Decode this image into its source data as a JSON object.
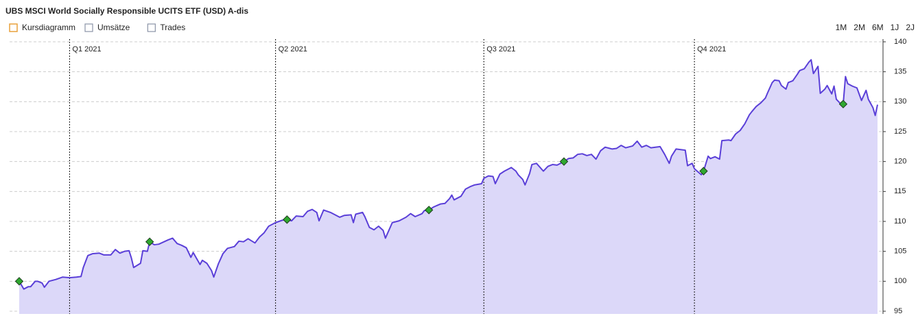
{
  "chart_data": {
    "type": "area",
    "title": "UBS MSCI World Socially Responsible UCITS ETF (USD) A-dis",
    "series": [
      {
        "name": "Kursdiagramm",
        "color": "#5a3fd8",
        "fill": "#dcd8f9",
        "x": [
          0,
          2,
          4,
          5,
          7,
          8,
          10,
          11,
          13,
          16,
          19,
          22,
          25,
          27,
          28,
          30,
          32,
          35,
          37,
          40,
          42,
          44,
          46,
          48,
          49,
          50,
          53,
          54,
          56,
          57,
          59,
          61,
          65,
          67,
          69,
          71,
          73,
          75,
          76,
          79,
          80,
          82,
          84,
          85,
          87,
          89,
          91,
          94,
          96,
          98,
          100,
          103,
          105,
          107,
          109,
          112,
          115,
          117,
          119,
          121,
          124,
          126,
          128,
          130,
          131,
          133,
          136,
          138,
          140,
          142,
          145,
          146,
          147,
          150,
          151,
          153,
          155,
          157,
          159,
          160,
          163,
          166,
          169,
          171,
          173,
          176,
          177,
          179,
          181,
          184,
          186,
          188,
          189,
          190,
          193,
          195,
          197,
          199,
          202,
          203,
          205,
          207,
          208,
          210,
          212,
          215,
          217,
          218,
          220,
          221,
          223,
          224,
          226,
          229,
          231,
          233,
          235,
          238,
          240,
          242,
          244,
          246,
          248,
          250,
          252,
          254,
          256,
          259,
          261,
          263,
          265,
          268,
          270,
          272,
          274,
          276,
          278,
          280,
          282,
          284,
          285,
          287,
          289,
          291,
          292,
          294,
          295,
          298,
          299,
          301,
          302,
          304,
          306,
          307,
          310,
          311,
          313,
          315,
          317,
          319,
          320,
          322,
          324,
          326,
          327,
          329,
          330,
          332,
          333,
          335,
          336,
          338,
          340,
          341,
          343,
          345,
          346,
          347,
          349,
          350,
          352,
          353,
          355,
          356,
          357,
          359,
          360,
          361,
          362,
          364,
          366,
          368,
          370,
          371,
          373,
          374,
          375
        ],
        "values": [
          100.0,
          98.7,
          99.1,
          99.1,
          100.0,
          100.0,
          99.7,
          99.0,
          100.0,
          100.3,
          100.7,
          100.6,
          100.7,
          100.8,
          102.3,
          104.3,
          104.6,
          104.7,
          104.4,
          104.4,
          105.3,
          104.7,
          105.0,
          105.1,
          103.9,
          102.3,
          103.0,
          105.1,
          105.0,
          106.6,
          106.1,
          106.2,
          106.9,
          107.2,
          106.3,
          106.0,
          105.6,
          104.0,
          104.8,
          102.8,
          103.5,
          103.0,
          101.8,
          100.7,
          102.9,
          104.6,
          105.5,
          105.8,
          106.7,
          106.6,
          107.1,
          106.4,
          107.4,
          108.1,
          109.2,
          109.8,
          110.2,
          110.3,
          110.1,
          110.9,
          110.8,
          111.7,
          112.0,
          111.5,
          110.1,
          111.9,
          111.5,
          111.1,
          110.7,
          111.0,
          111.1,
          109.8,
          111.2,
          111.5,
          110.8,
          109.0,
          108.6,
          109.2,
          108.5,
          107.2,
          109.8,
          110.1,
          110.7,
          111.3,
          110.8,
          111.3,
          111.8,
          111.9,
          112.4,
          112.9,
          113.0,
          113.8,
          114.4,
          113.6,
          114.2,
          115.4,
          115.8,
          116.1,
          116.3,
          117.2,
          117.6,
          117.5,
          116.3,
          117.9,
          118.4,
          119.0,
          118.4,
          117.8,
          117.0,
          116.1,
          118.0,
          119.5,
          119.7,
          118.4,
          119.2,
          119.5,
          119.4,
          120.0,
          120.5,
          120.6,
          121.2,
          121.3,
          121.0,
          121.2,
          120.4,
          121.8,
          122.4,
          122.1,
          122.2,
          122.7,
          122.3,
          122.6,
          123.4,
          122.4,
          122.7,
          122.3,
          122.4,
          122.5,
          121.2,
          119.7,
          120.9,
          122.1,
          122.0,
          121.9,
          119.3,
          119.7,
          118.8,
          117.8,
          118.4,
          120.9,
          120.5,
          120.8,
          120.4,
          123.5,
          123.6,
          123.5,
          124.6,
          125.2,
          126.3,
          127.8,
          128.3,
          129.2,
          129.8,
          130.6,
          131.5,
          133.2,
          133.6,
          133.5,
          132.7,
          132.1,
          133.2,
          133.5,
          134.6,
          135.2,
          135.5,
          136.6,
          137.0,
          134.7,
          135.9,
          131.4,
          132.1,
          132.7,
          131.3,
          132.6,
          130.4,
          129.6,
          129.6,
          134.2,
          133.0,
          132.6,
          132.3,
          130.2,
          131.9,
          130.4,
          129.0,
          127.7,
          129.5
        ]
      }
    ],
    "markers": {
      "color": "#2fa82f",
      "x": [
        0,
        57,
        117,
        179,
        238,
        299,
        360
      ],
      "values": [
        100.0,
        106.6,
        110.3,
        111.9,
        120.0,
        118.4,
        129.6
      ]
    },
    "xlim": [
      0,
      375
    ],
    "xticks": [
      {
        "value": 22,
        "label": "Q1 2021"
      },
      {
        "value": 112,
        "label": "Q2 2021"
      },
      {
        "value": 203,
        "label": "Q3 2021"
      },
      {
        "value": 295,
        "label": "Q4 2021"
      }
    ],
    "ylim": [
      95,
      140
    ],
    "yticks": [
      95,
      100,
      105,
      110,
      115,
      120,
      125,
      130,
      135,
      140
    ],
    "grid": true,
    "toggles": [
      {
        "label": "Umsätze",
        "color": "#8a93a6"
      },
      {
        "label": "Trades",
        "color": "#8a93a6"
      }
    ],
    "ranges": [
      "1M",
      "2M",
      "6M",
      "1J",
      "2J"
    ]
  }
}
